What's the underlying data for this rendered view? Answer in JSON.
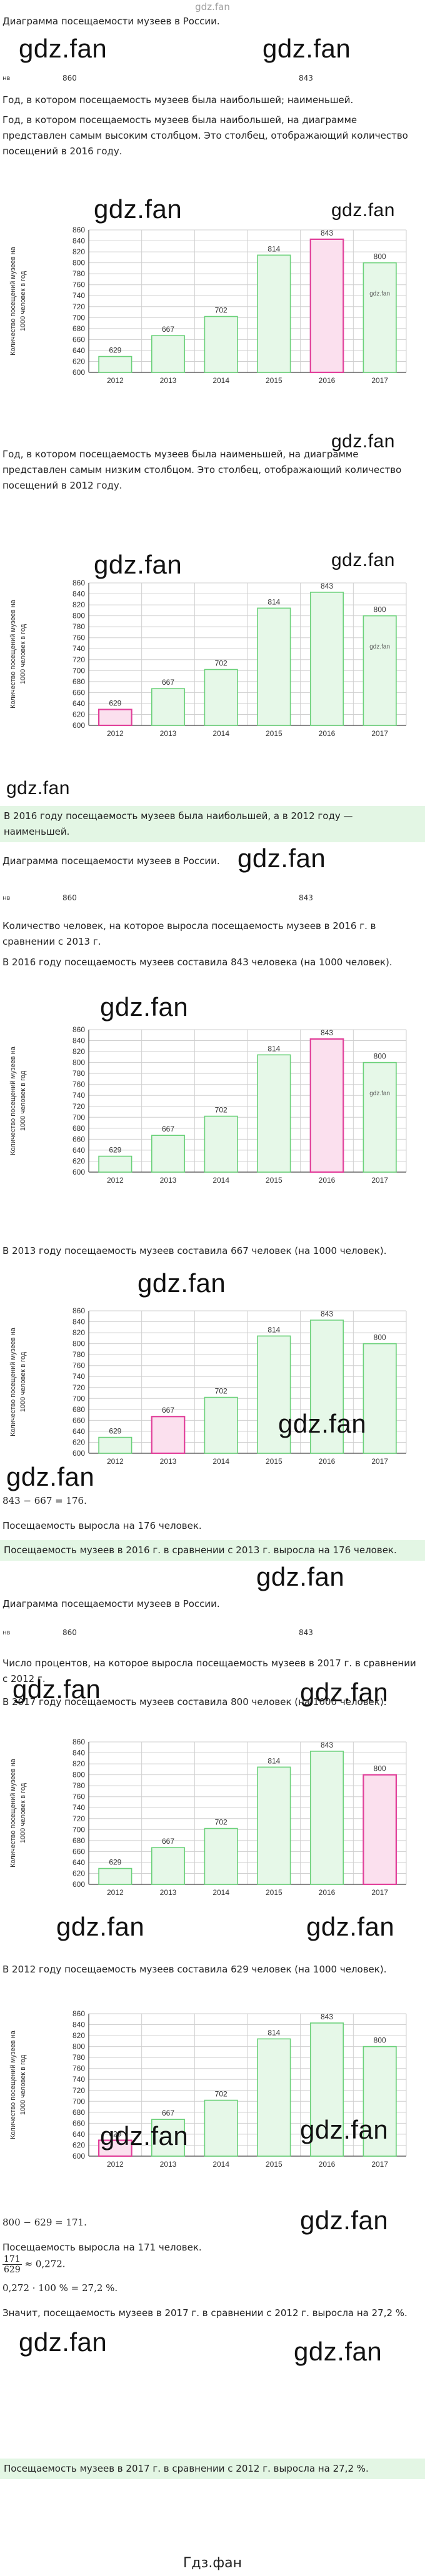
{
  "header": {
    "site_link": "gdz.fan"
  },
  "watermark": "gdz.fan",
  "footer": "Гдз.фан",
  "colors": {
    "bar_fill": "#e6f8e8",
    "bar_stroke": "#6bd17a",
    "highlight_fill": "#fbe0ee",
    "highlight_stroke": "#e1409a",
    "grid": "#cfcfcf",
    "note_bg": "#e3f6e4"
  },
  "sections": {
    "s1_title": "Диаграмма посещаемости музеев в России.",
    "ruler_860": "860",
    "ruler_843": "843",
    "ruler_pre": "нв",
    "s1_p1": "Год, в котором посещаемость музеев была наибольшей; наименьшей.",
    "s1_p2": "Год, в котором посещаемость музеев была наибольшей, на диаграмме представлен самым высоким столбцом. Это столбец, отображающий количество посещений в 2016 году.",
    "s1_p3": "Год, в котором посещаемость музеев была наименьшей, на диаграмме представлен самым низким столбцом. Это столбец, отображающий количество посещений в 2012 году.",
    "s1_answer": "В 2016 году посещаемость музеев была наибольшей, а в 2012 году — наименьшей.",
    "s2_title": "Диаграмма посещаемости музеев в России.",
    "s2_p1": "Количество человек, на которое выросла посещаемость музеев в 2016 г. в сравнении с 2013 г.",
    "s2_p2": "В 2016 году посещаемость музеев составила 843 человека (на 1000 человек).",
    "s2_p3": "В 2013 году посещаемость музеев составила 667 человек (на 1000 человек).",
    "s2_calc": "843 − 667 = 176.",
    "s2_p4": "Посещаемость выросла на 176 человек.",
    "s2_answer": "Посещаемость музеев в 2016 г. в сравнении с 2013 г. выросла на 176 человек.",
    "s3_title": "Диаграмма посещаемости музеев в России.",
    "s3_p1": "Число процентов, на которое выросла посещаемость музеев в 2017 г. в сравнении с 2012 г.",
    "s3_p2": "В 2017 году посещаемость музеев составила 800 человек (на 1000 человек).",
    "s3_p3": "В 2012 году посещаемость музеев составила 629 человек (на 1000 человек).",
    "s3_calc1": "800 − 629 = 171.",
    "s3_p4": "Посещаемость выросла на 171 человек.",
    "s3_frac_num": "171",
    "s3_frac_den": "629",
    "s3_frac_rest": "≈ 0,272.",
    "s3_calc2": "0,272 · 100 % = 27,2 %.",
    "s3_p5": "Значит, посещаемость музеев в 2017 г. в сравнении с 2012 г. выросла на 27,2 %.",
    "s3_answer": "Посещаемость музеев в 2017 г. в сравнении с 2012 г. выросла на 27,2 %."
  },
  "chart_data": [
    {
      "type": "bar",
      "categories": [
        "2012",
        "2013",
        "2014",
        "2015",
        "2016",
        "2017"
      ],
      "values": [
        629,
        667,
        702,
        814,
        843,
        800
      ],
      "ylabel": "Количество посещений музеев на 1000 человек в год",
      "ylim": [
        600,
        860
      ],
      "yticks": [
        600,
        620,
        640,
        660,
        680,
        700,
        720,
        740,
        760,
        780,
        800,
        820,
        840,
        860
      ],
      "highlight": [
        "2016"
      ],
      "grid": true,
      "inner_note": "gdz.fan"
    },
    {
      "type": "bar",
      "categories": [
        "2012",
        "2013",
        "2014",
        "2015",
        "2016",
        "2017"
      ],
      "values": [
        629,
        667,
        702,
        814,
        843,
        800
      ],
      "ylabel": "Количество посещений музеев на 1000 человек в год",
      "ylim": [
        600,
        860
      ],
      "yticks": [
        600,
        620,
        640,
        660,
        680,
        700,
        720,
        740,
        760,
        780,
        800,
        820,
        840,
        860
      ],
      "highlight": [
        "2012"
      ],
      "grid": true,
      "inner_note": "gdz.fan"
    },
    {
      "type": "bar",
      "categories": [
        "2012",
        "2013",
        "2014",
        "2015",
        "2016",
        "2017"
      ],
      "values": [
        629,
        667,
        702,
        814,
        843,
        800
      ],
      "ylabel": "Количество посещений музеев на 1000 человек в год",
      "ylim": [
        600,
        860
      ],
      "yticks": [
        600,
        620,
        640,
        660,
        680,
        700,
        720,
        740,
        760,
        780,
        800,
        820,
        840,
        860
      ],
      "highlight": [
        "2016"
      ],
      "grid": true,
      "inner_note": "gdz.fan"
    },
    {
      "type": "bar",
      "categories": [
        "2012",
        "2013",
        "2014",
        "2015",
        "2016",
        "2017"
      ],
      "values": [
        629,
        667,
        702,
        814,
        843,
        800
      ],
      "ylabel": "Количество посещений музеев на 1000 человек в год",
      "ylim": [
        600,
        860
      ],
      "yticks": [
        600,
        620,
        640,
        660,
        680,
        700,
        720,
        740,
        760,
        780,
        800,
        820,
        840,
        860
      ],
      "highlight": [
        "2013"
      ],
      "grid": true,
      "inner_note": ""
    },
    {
      "type": "bar",
      "categories": [
        "2012",
        "2013",
        "2014",
        "2015",
        "2016",
        "2017"
      ],
      "values": [
        629,
        667,
        702,
        814,
        843,
        800
      ],
      "ylabel": "Количество посещений музеев на 1000 человек в год",
      "ylim": [
        600,
        860
      ],
      "yticks": [
        600,
        620,
        640,
        660,
        680,
        700,
        720,
        740,
        760,
        780,
        800,
        820,
        840,
        860
      ],
      "highlight": [
        "2017"
      ],
      "grid": true,
      "inner_note": ""
    },
    {
      "type": "bar",
      "categories": [
        "2012",
        "2013",
        "2014",
        "2015",
        "2016",
        "2017"
      ],
      "values": [
        629,
        667,
        702,
        814,
        843,
        800
      ],
      "ylabel": "Количество посещений музеев на 1000 человек в год",
      "ylim": [
        600,
        860
      ],
      "yticks": [
        600,
        620,
        640,
        660,
        680,
        700,
        720,
        740,
        760,
        780,
        800,
        820,
        840,
        860
      ],
      "highlight": [
        "2012"
      ],
      "grid": true,
      "inner_note": ""
    }
  ]
}
